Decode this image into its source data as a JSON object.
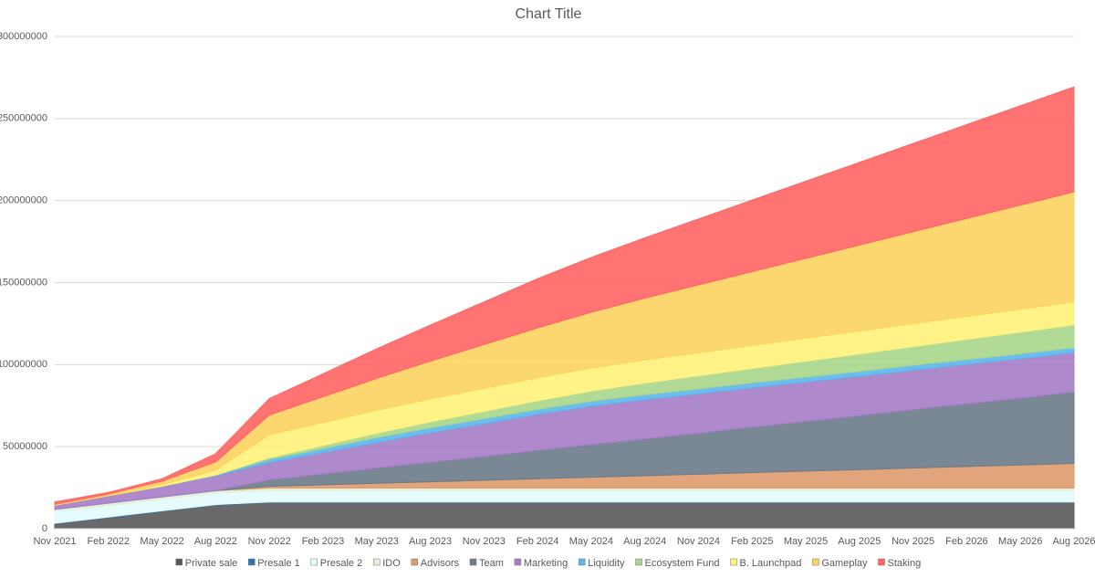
{
  "chart_data": {
    "type": "stacked-area",
    "title": "Chart Title",
    "categories": [
      "Nov 2021",
      "Feb 2022",
      "May 2022",
      "Aug 2022",
      "Nov 2022",
      "Feb 2023",
      "May 2023",
      "Aug 2023",
      "Nov 2023",
      "Feb 2024",
      "May 2024",
      "Aug 2024",
      "Nov 2024",
      "Feb 2025",
      "May 2025",
      "Aug 2025",
      "Nov 2025",
      "Feb 2026",
      "May 2026",
      "Aug 2026"
    ],
    "ylim": [
      0,
      300000000
    ],
    "yticks": [
      0,
      50000000,
      100000000,
      150000000,
      200000000,
      250000000,
      300000000
    ],
    "grid": true,
    "legend": "bottom",
    "series": [
      {
        "name": "Private sale",
        "color": "#595959",
        "values": [
          3000000,
          6800000,
          10600000,
          14400000,
          16000000,
          16000000,
          16000000,
          16000000,
          16000000,
          16000000,
          16000000,
          16000000,
          16000000,
          16000000,
          16000000,
          16000000,
          16000000,
          16000000,
          16000000,
          16000000
        ]
      },
      {
        "name": "Presale 1",
        "color": "#2e75b6",
        "values": [
          300000,
          300000,
          300000,
          300000,
          300000,
          300000,
          300000,
          300000,
          300000,
          300000,
          300000,
          300000,
          300000,
          300000,
          300000,
          300000,
          300000,
          300000,
          300000,
          300000
        ]
      },
      {
        "name": "Presale 2",
        "color": "#e3fbfb",
        "values": [
          7000000,
          7000000,
          7000000,
          7000000,
          7000000,
          7000000,
          7000000,
          7000000,
          7000000,
          7000000,
          7000000,
          7000000,
          7000000,
          7000000,
          7000000,
          7000000,
          7000000,
          7000000,
          7000000,
          7000000
        ]
      },
      {
        "name": "IDO",
        "color": "#e2f0d9",
        "values": [
          1500000,
          1500000,
          1500000,
          1500000,
          1500000,
          1500000,
          1500000,
          1500000,
          1500000,
          1500000,
          1500000,
          1500000,
          1500000,
          1500000,
          1500000,
          1500000,
          1500000,
          1500000,
          1500000,
          1500000
        ]
      },
      {
        "name": "Advisors",
        "color": "#df9a6b",
        "values": [
          0,
          0,
          0,
          0,
          1000000,
          1900000,
          2900000,
          3800000,
          4700000,
          5700000,
          6600000,
          7500000,
          8400000,
          9400000,
          10300000,
          11200000,
          12200000,
          13100000,
          14000000,
          15000000
        ]
      },
      {
        "name": "Team",
        "color": "#6c7a89",
        "values": [
          0,
          0,
          0,
          0,
          4000000,
          6600000,
          9300000,
          11900000,
          14500000,
          17200000,
          19800000,
          22400000,
          25000000,
          27700000,
          30300000,
          32900000,
          35600000,
          38200000,
          40800000,
          43500000
        ]
      },
      {
        "name": "Marketing",
        "color": "#a57dc8",
        "values": [
          2500000,
          4500000,
          6500000,
          9000000,
          10500000,
          13000000,
          15500000,
          18000000,
          20000000,
          22000000,
          23500000,
          24000000,
          24000000,
          24000000,
          24000000,
          24000000,
          24000000,
          24000000,
          24000000,
          24000000
        ]
      },
      {
        "name": "Liquidity",
        "color": "#5bb6ec",
        "values": [
          0,
          0,
          0,
          500000,
          2000000,
          2500000,
          3000000,
          3000000,
          3000000,
          3000000,
          3000000,
          3000000,
          3000000,
          3000000,
          3000000,
          3000000,
          3000000,
          3000000,
          3000000,
          3000000
        ]
      },
      {
        "name": "Ecosystem Fund",
        "color": "#a9d68b",
        "values": [
          0,
          0,
          0,
          0,
          1000000,
          1900000,
          2700000,
          3600000,
          4500000,
          5300000,
          6200000,
          7100000,
          8000000,
          8800000,
          9700000,
          10600000,
          11400000,
          12300000,
          13200000,
          14000000
        ]
      },
      {
        "name": "B. Launchpad",
        "color": "#fff27a",
        "values": [
          0,
          0,
          1000000,
          3000000,
          14000000,
          14000000,
          14000000,
          14000000,
          14000000,
          14000000,
          14000000,
          14000000,
          14000000,
          14000000,
          14000000,
          14000000,
          14000000,
          14000000,
          14000000,
          14000000
        ]
      },
      {
        "name": "Gameplay",
        "color": "#fcd35f",
        "values": [
          500000,
          1000000,
          2000000,
          5000000,
          12000000,
          15700000,
          19400000,
          23000000,
          26700000,
          30400000,
          34000000,
          37700000,
          41400000,
          45000000,
          48700000,
          52400000,
          56000000,
          59700000,
          63400000,
          67000000
        ]
      },
      {
        "name": "Staking",
        "color": "#ff6464",
        "values": [
          1500000,
          1000000,
          1500000,
          5000000,
          10000000,
          14000000,
          18000000,
          22000000,
          26000000,
          30000000,
          33400000,
          36800000,
          40200000,
          43600000,
          47000000,
          50400000,
          53800000,
          57200000,
          60600000,
          64000000
        ]
      }
    ]
  }
}
